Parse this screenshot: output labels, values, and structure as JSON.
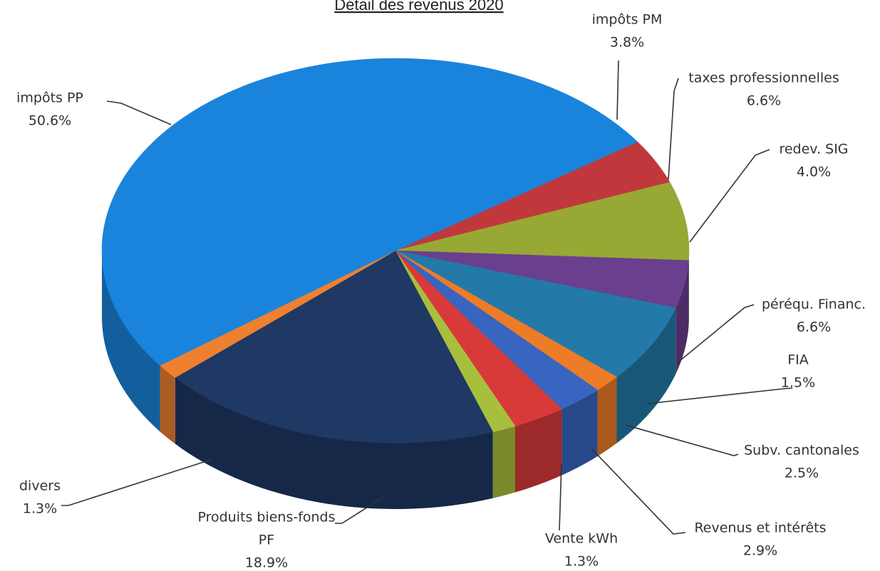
{
  "chart_data": {
    "type": "pie",
    "title": "Détail des revenus 2020",
    "value_unit": "%",
    "slices": [
      {
        "name": "impôts PM",
        "name_lines": [
          "impôts PM"
        ],
        "value": 3.8,
        "label": "3.8%",
        "color": "#c0383b"
      },
      {
        "name": "taxes professionnelles",
        "name_lines": [
          "taxes professionnelles"
        ],
        "value": 6.6,
        "label": "6.6%",
        "color": "#98a835"
      },
      {
        "name": "redev. SIG",
        "name_lines": [
          "redev. SIG"
        ],
        "value": 4.0,
        "label": "4.0%",
        "color": "#6a3f8e"
      },
      {
        "name": "péréqu. Financ.",
        "name_lines": [
          "péréqu. Financ."
        ],
        "value": 6.6,
        "label": "6.6%",
        "color": "#2379a8"
      },
      {
        "name": "FIA",
        "name_lines": [
          "FIA"
        ],
        "value": 1.5,
        "label": "1.5%",
        "color": "#ec7c27"
      },
      {
        "name": "Subv. cantonales",
        "name_lines": [
          "Subv. cantonales"
        ],
        "value": 2.5,
        "label": "2.5%",
        "color": "#3765c0"
      },
      {
        "name": "Revenus et intérêts",
        "name_lines": [
          "Revenus et intérêts"
        ],
        "value": 2.9,
        "label": "2.9%",
        "color": "#d83a3a"
      },
      {
        "name": "Vente kWh",
        "name_lines": [
          "Vente kWh"
        ],
        "value": 1.3,
        "label": "1.3%",
        "color": "#a8bf3d"
      },
      {
        "name": "Produits biens-fonds PF",
        "name_lines": [
          "Produits biens-fonds",
          "PF"
        ],
        "value": 18.9,
        "label": "18.9%",
        "color": "#1f3864"
      },
      {
        "name": "divers",
        "name_lines": [
          "divers"
        ],
        "value": 1.3,
        "label": "1.3%",
        "color": "#ee8030"
      },
      {
        "name": "impôts PP",
        "name_lines": [
          "impôts PP"
        ],
        "value": 50.6,
        "label": "50.6%",
        "color": "#1a84dc"
      }
    ]
  }
}
